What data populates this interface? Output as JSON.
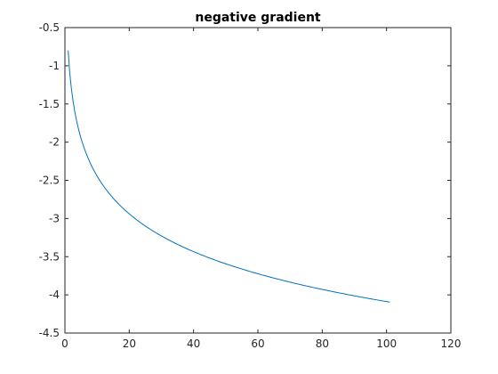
{
  "colors": {
    "background": "#ffffff",
    "axis": "#262626",
    "series": "#0072BD"
  },
  "chart_data": {
    "type": "line",
    "title": "negative gradient",
    "xlabel": "",
    "ylabel": "",
    "xlim": [
      0,
      120
    ],
    "ylim": [
      -4.5,
      -0.5
    ],
    "xticks": [
      0,
      20,
      40,
      60,
      80,
      100,
      120
    ],
    "yticks": [
      -0.5,
      -1,
      -1.5,
      -2,
      -2.5,
      -3,
      -3.5,
      -4,
      -4.5
    ],
    "grid": false,
    "series": [
      {
        "curve": "y = -0.8 - 0.714 * ln(x)",
        "x": [
          1,
          101
        ],
        "samples": 201,
        "color": "#0072BD"
      }
    ]
  }
}
